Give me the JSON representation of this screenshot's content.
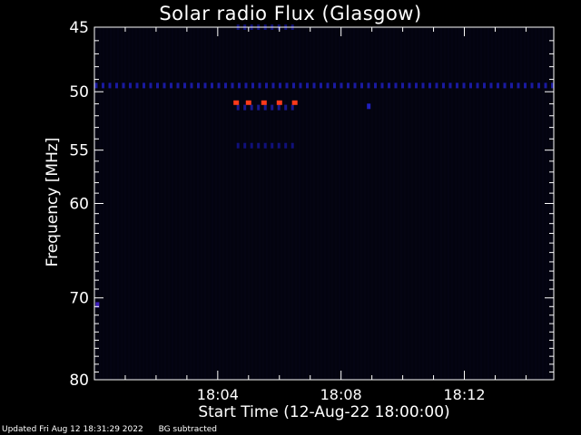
{
  "chart_data": {
    "type": "heatmap",
    "title": "Solar radio Flux (Glasgow)",
    "xlabel": "Start Time (12-Aug-22 18:00:00)",
    "ylabel": "Frequency [MHz]",
    "x_unit": "minutes",
    "xlim": [
      0.0,
      14.9
    ],
    "ylim": [
      45,
      80
    ],
    "y_scale": "log",
    "y_inverted": true,
    "x_ticks": [
      {
        "value": 4,
        "label": "18:04"
      },
      {
        "value": 8,
        "label": "18:08"
      },
      {
        "value": 12,
        "label": "18:12"
      }
    ],
    "y_ticks": [
      {
        "value": 45,
        "label": "45"
      },
      {
        "value": 50,
        "label": "50"
      },
      {
        "value": 55,
        "label": "55"
      },
      {
        "value": 60,
        "label": "60"
      },
      {
        "value": 70,
        "label": "70"
      },
      {
        "value": 80,
        "label": "80"
      }
    ],
    "background_color": "#03030f",
    "hotspots": [
      {
        "t": 4.6,
        "freq": 50.9,
        "color": "#ff3a1a"
      },
      {
        "t": 5.0,
        "freq": 50.9,
        "color": "#ff3a1a"
      },
      {
        "t": 5.5,
        "freq": 50.9,
        "color": "#ff3a1a"
      },
      {
        "t": 6.0,
        "freq": 50.9,
        "color": "#ff3a1a"
      },
      {
        "t": 6.5,
        "freq": 50.9,
        "color": "#ff3a1a"
      }
    ],
    "interference_bands": [
      {
        "freq": 49.5,
        "t_start": 0.0,
        "t_end": 14.9,
        "color": "#1a1aa0"
      },
      {
        "freq": 51.3,
        "t_start": 4.6,
        "t_end": 6.6,
        "color": "#1a1a90"
      },
      {
        "freq": 54.6,
        "t_start": 4.6,
        "t_end": 6.6,
        "color": "#10107a"
      },
      {
        "freq": 45.0,
        "t_start": 4.6,
        "t_end": 6.6,
        "color": "#10107a"
      }
    ],
    "spots": [
      {
        "t": 8.9,
        "freq": 51.2,
        "color": "#2020c0"
      },
      {
        "t": 0.1,
        "freq": 70.8,
        "color": "#4020c0"
      }
    ]
  },
  "footer": {
    "updated": "Updated Fri Aug 12 18:31:29 2022",
    "note": "BG subtracted"
  }
}
